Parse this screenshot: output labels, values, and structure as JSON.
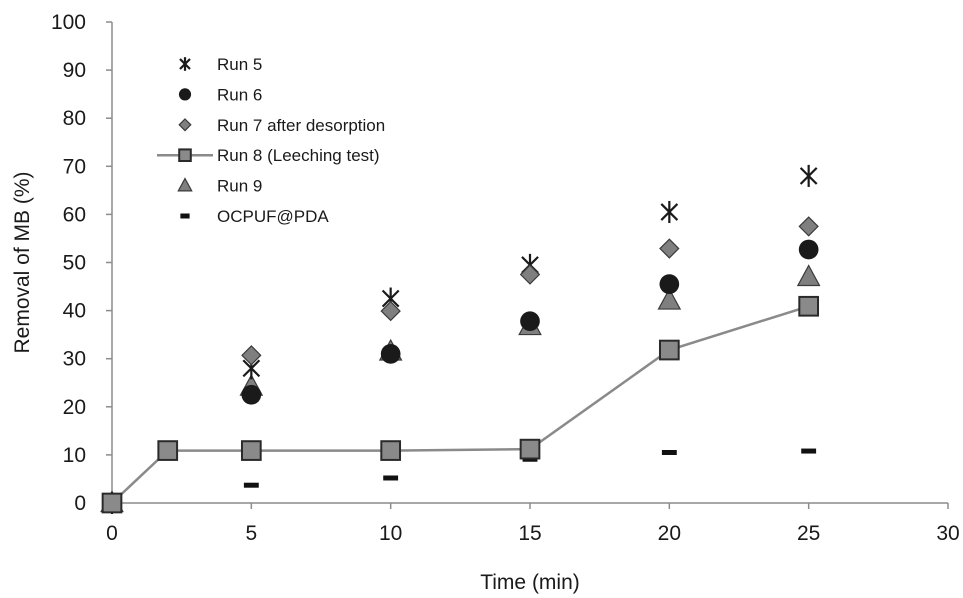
{
  "chart_data": {
    "type": "scatter",
    "title": "",
    "xlabel": "Time (min)",
    "ylabel": "Removal of MB (%)",
    "xlim": [
      0,
      30
    ],
    "ylim": [
      0,
      100
    ],
    "xticks": [
      0,
      5,
      10,
      15,
      20,
      25,
      30
    ],
    "yticks": [
      0,
      10,
      20,
      30,
      40,
      50,
      60,
      70,
      80,
      90,
      100
    ],
    "grid": false,
    "legend_position": "top-left",
    "series": [
      {
        "name": "Run 5",
        "marker": "asterisk",
        "line": false,
        "color": "#1a1a1a",
        "points": [
          [
            0,
            0
          ],
          [
            5,
            28
          ],
          [
            10,
            42.5
          ],
          [
            15,
            49.5
          ],
          [
            20,
            60.5
          ],
          [
            25,
            68
          ]
        ]
      },
      {
        "name": "Run 6",
        "marker": "circle",
        "line": false,
        "color": "#1a1a1a",
        "points": [
          [
            0,
            0
          ],
          [
            5,
            22.5
          ],
          [
            10,
            31
          ],
          [
            15,
            37.8
          ],
          [
            20,
            45.5
          ],
          [
            25,
            52.7
          ]
        ]
      },
      {
        "name": "Run 7 after desorption",
        "marker": "diamond",
        "line": false,
        "color": "#808080",
        "points": [
          [
            0,
            0
          ],
          [
            5,
            30.7
          ],
          [
            10,
            39.9
          ],
          [
            15,
            47.5
          ],
          [
            20,
            52.9
          ],
          [
            25,
            57.5
          ]
        ]
      },
      {
        "name": "Run 8 (Leeching test)",
        "marker": "square",
        "line": true,
        "color": "#8a8a8a",
        "points": [
          [
            0,
            0
          ],
          [
            2,
            10.9
          ],
          [
            5,
            10.9
          ],
          [
            10,
            10.9
          ],
          [
            15,
            11.2
          ],
          [
            20,
            31.8
          ],
          [
            25,
            40.9
          ]
        ]
      },
      {
        "name": "Run 9",
        "marker": "triangle",
        "line": false,
        "color": "#808080",
        "points": [
          [
            0,
            0
          ],
          [
            5,
            24.2
          ],
          [
            10,
            31.5
          ],
          [
            15,
            36.8
          ],
          [
            20,
            42.1
          ],
          [
            25,
            47
          ]
        ]
      },
      {
        "name": "OCPUF@PDA",
        "marker": "dash",
        "line": false,
        "color": "#111111",
        "points": [
          [
            5,
            3.7
          ],
          [
            10,
            5.2
          ],
          [
            15,
            9.1
          ],
          [
            20,
            10.5
          ],
          [
            25,
            10.8
          ]
        ]
      }
    ]
  }
}
